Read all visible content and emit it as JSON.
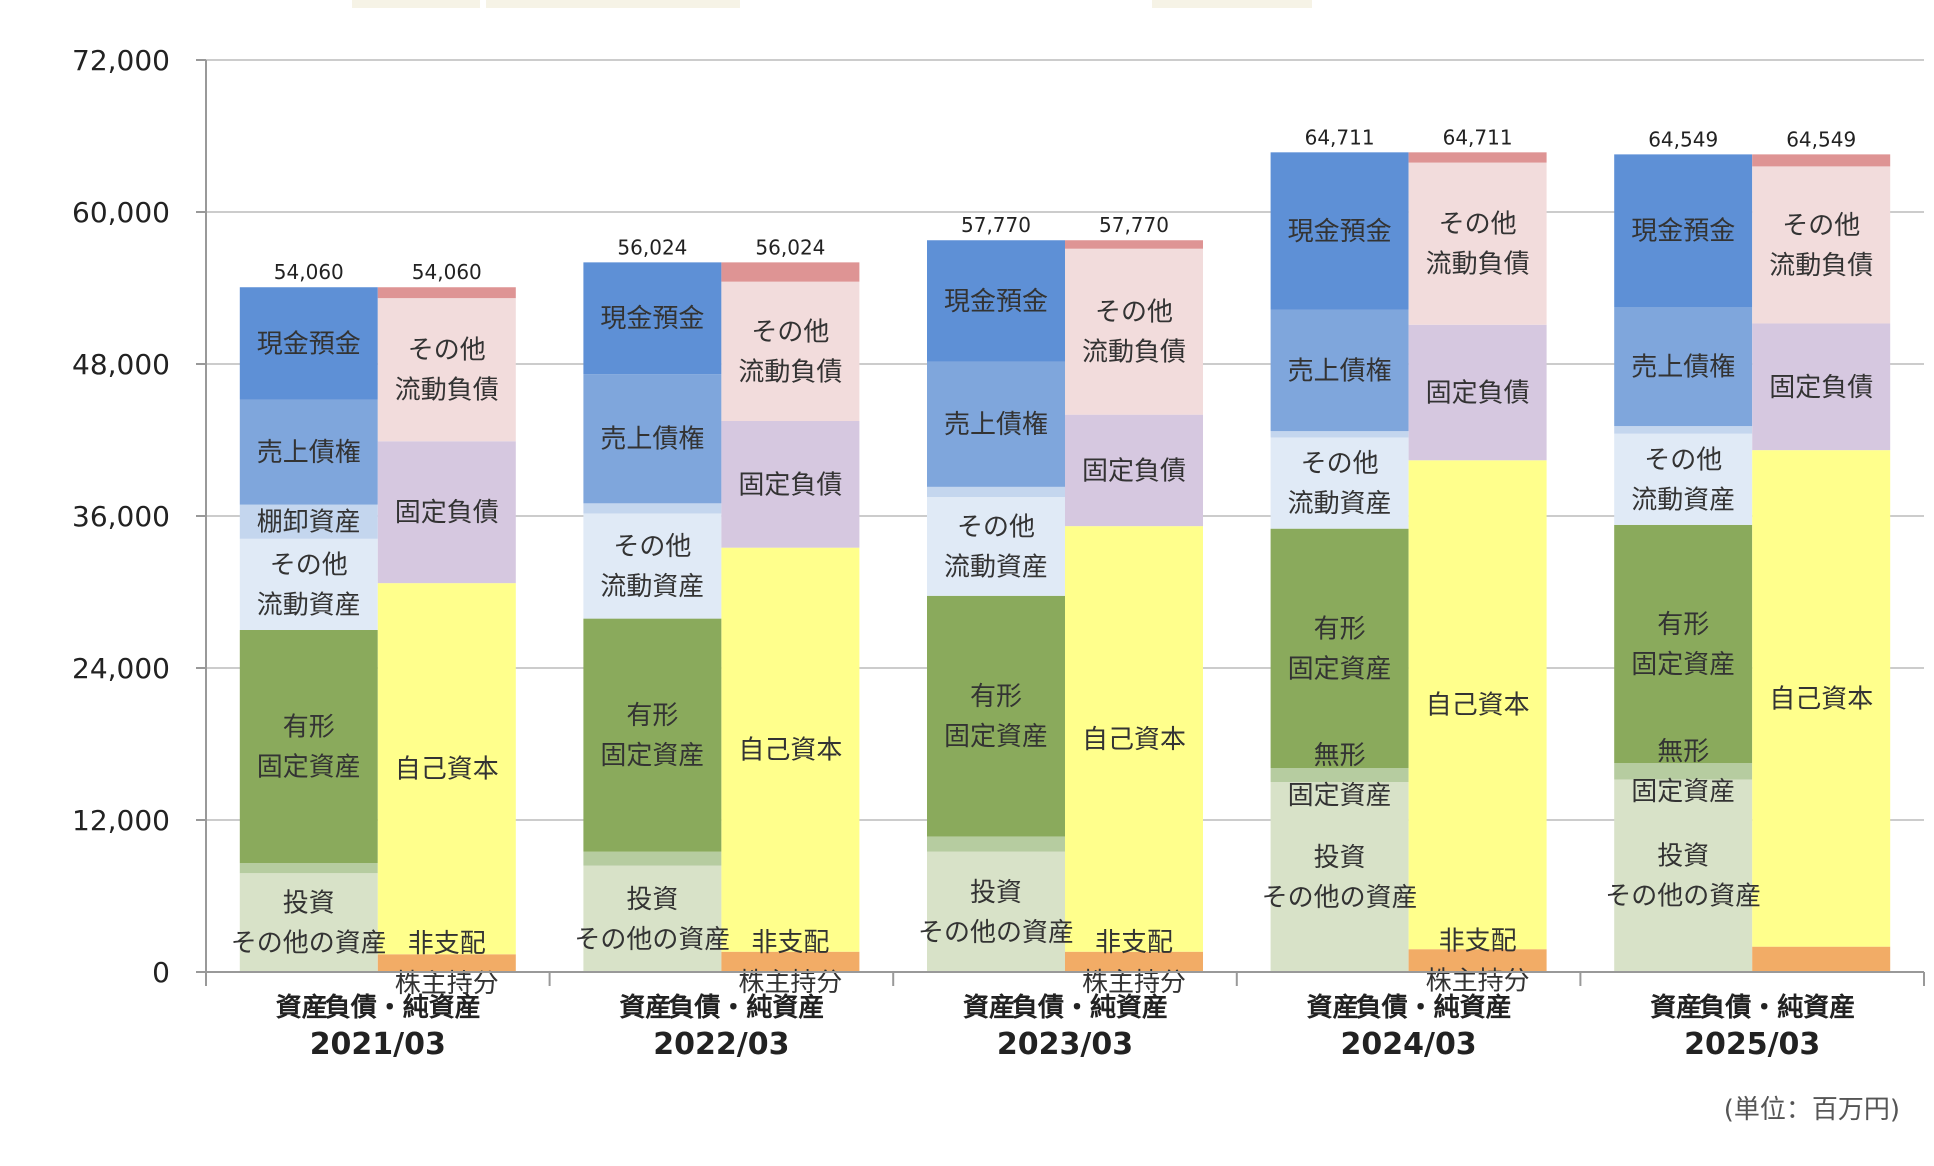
{
  "chart_data": {
    "type": "bar",
    "stacked": true,
    "title": "",
    "unit_note": "(単位：百万円)",
    "ylim": [
      0,
      72000
    ],
    "yticks": [
      "0",
      "12,000",
      "24,000",
      "36,000",
      "48,000",
      "60,000",
      "72,000"
    ],
    "ytick_values": [
      0,
      12000,
      24000,
      36000,
      48000,
      60000,
      72000
    ],
    "grid": true,
    "column_labels": {
      "assets": "資産",
      "liabilities": "負債・純資産"
    },
    "assets_series": [
      {
        "key": "investment",
        "label_lines": [
          "投資",
          "その他の資産"
        ],
        "color": "#d8e2c8"
      },
      {
        "key": "intangible",
        "label_lines": [
          "無形",
          "固定資産"
        ],
        "color": "#b6cca0"
      },
      {
        "key": "tangible",
        "label_lines": [
          "有形",
          "固定資産"
        ],
        "color": "#8aaa5c"
      },
      {
        "key": "other_current",
        "label_lines": [
          "その他",
          "流動資産"
        ],
        "color": "#e0eaf6"
      },
      {
        "key": "inventory",
        "label_lines": [
          "棚卸資産"
        ],
        "color": "#c4d6ee"
      },
      {
        "key": "receivables",
        "label_lines": [
          "売上債権"
        ],
        "color": "#7fa6dc"
      },
      {
        "key": "cash",
        "label_lines": [
          "現金預金"
        ],
        "color": "#5e90d6"
      }
    ],
    "liabilities_series": [
      {
        "key": "minority",
        "label_lines": [
          "非支配",
          "株主持分"
        ],
        "color": "#f2ac66"
      },
      {
        "key": "equity",
        "label_lines": [
          "自己資本"
        ],
        "color": "#ffff8c"
      },
      {
        "key": "fixed_liab",
        "label_lines": [
          "固定負債"
        ],
        "color": "#d6c8e0"
      },
      {
        "key": "other_current_liab",
        "label_lines": [
          "その他",
          "流動負債"
        ],
        "color": "#f2dcdc"
      },
      {
        "key": "top_liab",
        "label_lines": [],
        "color": "#de9494"
      }
    ],
    "periods": [
      {
        "label": "2021/03",
        "total_label": "54,060",
        "assets": {
          "investment": 7800,
          "intangible": 800,
          "tangible": 18400,
          "other_current": 7200,
          "inventory": 2700,
          "receivables": 8300,
          "cash": 8860
        },
        "liabilities": {
          "minority": 1400,
          "equity": 29300,
          "fixed_liab": 11200,
          "other_current_liab": 11300,
          "top_liab": 860
        },
        "asset_labels": [
          "investment",
          "tangible",
          "other_current",
          "inventory",
          "receivables",
          "cash"
        ],
        "liability_labels": [
          "minority",
          "equity",
          "fixed_liab",
          "other_current_liab"
        ]
      },
      {
        "label": "2022/03",
        "total_label": "56,024",
        "assets": {
          "investment": 8400,
          "intangible": 1100,
          "tangible": 18400,
          "other_current": 8300,
          "inventory": 800,
          "receivables": 10200,
          "cash": 8824
        },
        "liabilities": {
          "minority": 1600,
          "equity": 31900,
          "fixed_liab": 10000,
          "other_current_liab": 11000,
          "top_liab": 1524
        },
        "asset_labels": [
          "investment",
          "tangible",
          "other_current",
          "receivables",
          "cash"
        ],
        "liability_labels": [
          "minority",
          "equity",
          "fixed_liab",
          "other_current_liab"
        ]
      },
      {
        "label": "2023/03",
        "total_label": "57,770",
        "assets": {
          "investment": 9500,
          "intangible": 1200,
          "tangible": 19000,
          "other_current": 7800,
          "inventory": 800,
          "receivables": 9900,
          "cash": 9570
        },
        "liabilities": {
          "minority": 1600,
          "equity": 33600,
          "fixed_liab": 8800,
          "other_current_liab": 13100,
          "top_liab": 670
        },
        "asset_labels": [
          "investment",
          "tangible",
          "other_current",
          "receivables",
          "cash"
        ],
        "liability_labels": [
          "minority",
          "equity",
          "fixed_liab",
          "other_current_liab"
        ]
      },
      {
        "label": "2024/03",
        "total_label": "64,711",
        "assets": {
          "investment": 15000,
          "intangible": 1100,
          "tangible": 18900,
          "other_current": 7200,
          "inventory": 500,
          "receivables": 9600,
          "cash": 12411
        },
        "liabilities": {
          "minority": 1800,
          "equity": 38600,
          "fixed_liab": 10700,
          "other_current_liab": 12800,
          "top_liab": 811
        },
        "asset_labels": [
          "investment",
          "intangible",
          "tangible",
          "other_current",
          "receivables",
          "cash"
        ],
        "liability_labels": [
          "minority",
          "equity",
          "fixed_liab",
          "other_current_liab"
        ]
      },
      {
        "label": "2025/03",
        "total_label": "64,549",
        "assets": {
          "investment": 15200,
          "intangible": 1300,
          "tangible": 18800,
          "other_current": 7200,
          "inventory": 600,
          "receivables": 9400,
          "cash": 12049
        },
        "liabilities": {
          "minority": 2000,
          "equity": 39200,
          "fixed_liab": 10000,
          "other_current_liab": 12400,
          "top_liab": 949
        },
        "asset_labels": [
          "investment",
          "intangible",
          "tangible",
          "other_current",
          "receivables",
          "cash"
        ],
        "liability_labels": [
          "equity",
          "fixed_liab",
          "other_current_liab"
        ]
      }
    ]
  }
}
